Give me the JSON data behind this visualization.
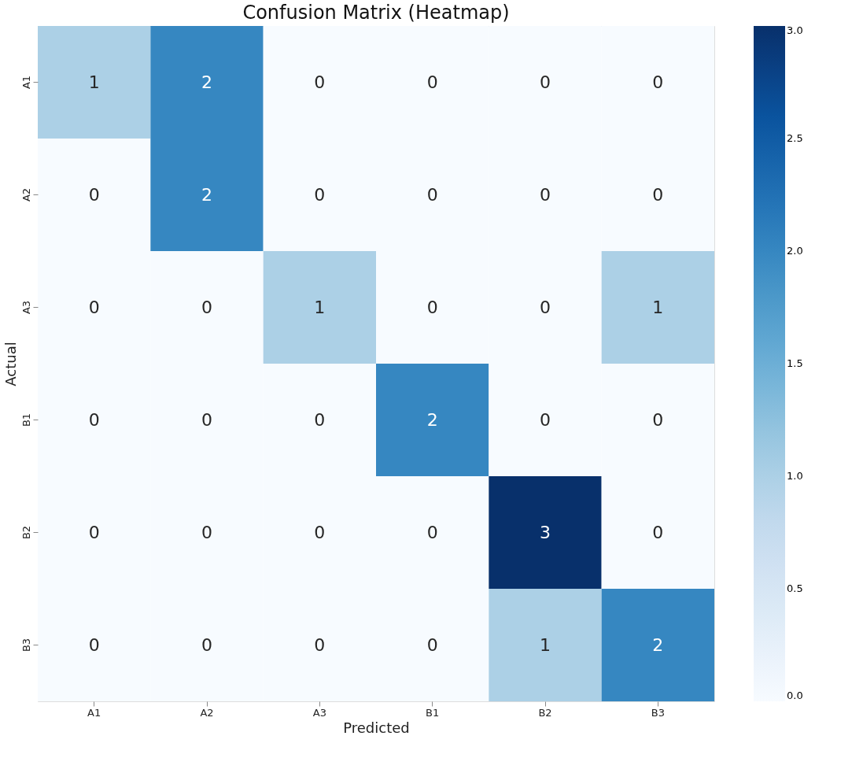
{
  "chart_data": {
    "type": "heatmap",
    "title": "Confusion Matrix (Heatmap)",
    "xlabel": "Predicted",
    "ylabel": "Actual",
    "categories": [
      "A1",
      "A2",
      "A3",
      "B1",
      "B2",
      "B3"
    ],
    "y_categories": [
      "A1",
      "A2",
      "A3",
      "B1",
      "B2",
      "B3"
    ],
    "cells": [
      [
        1,
        2,
        0,
        0,
        0,
        0
      ],
      [
        0,
        2,
        0,
        0,
        0,
        0
      ],
      [
        0,
        0,
        1,
        0,
        0,
        1
      ],
      [
        0,
        0,
        0,
        2,
        0,
        0
      ],
      [
        0,
        0,
        0,
        0,
        3,
        0
      ],
      [
        0,
        0,
        0,
        0,
        1,
        2
      ]
    ],
    "data_labels": true,
    "clim": [
      0,
      3
    ],
    "cticks": [
      {
        "value": 0,
        "label": "0.0"
      },
      {
        "value": 0.5,
        "label": "0.5"
      },
      {
        "value": 1,
        "label": "1.0"
      },
      {
        "value": 1.5,
        "label": "1.5"
      },
      {
        "value": 2,
        "label": "2.0"
      },
      {
        "value": 2.5,
        "label": "2.5"
      },
      {
        "value": 3,
        "label": "3.0"
      }
    ]
  }
}
